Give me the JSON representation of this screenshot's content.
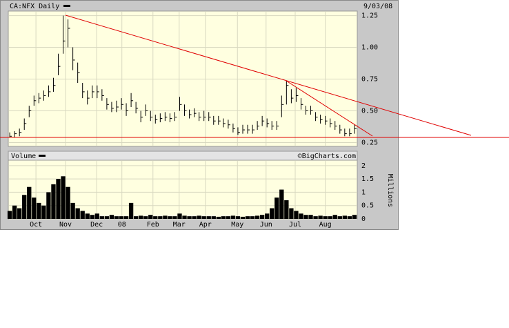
{
  "chart_data": [
    {
      "type": "ohlc",
      "title": "CA:NFX Daily",
      "date": "9/03/08",
      "watermark": "©BigCharts.com",
      "color": "#000000",
      "high": [
        0.33,
        0.34,
        0.36,
        0.44,
        0.54,
        0.62,
        0.64,
        0.66,
        0.7,
        0.76,
        0.95,
        1.25,
        1.22,
        1.0,
        0.88,
        0.72,
        0.66,
        0.7,
        0.7,
        0.67,
        0.6,
        0.57,
        0.58,
        0.6,
        0.56,
        0.64,
        0.57,
        0.5,
        0.55,
        0.5,
        0.47,
        0.48,
        0.49,
        0.48,
        0.49,
        0.61,
        0.55,
        0.51,
        0.52,
        0.49,
        0.5,
        0.49,
        0.46,
        0.46,
        0.44,
        0.43,
        0.4,
        0.37,
        0.39,
        0.39,
        0.39,
        0.42,
        0.46,
        0.44,
        0.42,
        0.42,
        0.62,
        0.74,
        0.67,
        0.68,
        0.6,
        0.54,
        0.54,
        0.49,
        0.47,
        0.46,
        0.44,
        0.42,
        0.39,
        0.36,
        0.36,
        0.39
      ],
      "low": [
        0.29,
        0.29,
        0.3,
        0.35,
        0.45,
        0.54,
        0.56,
        0.58,
        0.61,
        0.65,
        0.78,
        0.95,
        1.0,
        0.82,
        0.72,
        0.6,
        0.55,
        0.6,
        0.6,
        0.58,
        0.51,
        0.49,
        0.49,
        0.51,
        0.46,
        0.53,
        0.48,
        0.41,
        0.46,
        0.42,
        0.4,
        0.41,
        0.42,
        0.41,
        0.42,
        0.5,
        0.46,
        0.44,
        0.45,
        0.42,
        0.42,
        0.42,
        0.39,
        0.39,
        0.37,
        0.36,
        0.33,
        0.31,
        0.32,
        0.32,
        0.32,
        0.35,
        0.38,
        0.37,
        0.35,
        0.35,
        0.45,
        0.55,
        0.56,
        0.57,
        0.51,
        0.47,
        0.47,
        0.42,
        0.4,
        0.39,
        0.37,
        0.35,
        0.32,
        0.3,
        0.3,
        0.32
      ],
      "close": [
        0.3,
        0.32,
        0.33,
        0.4,
        0.5,
        0.58,
        0.6,
        0.62,
        0.65,
        0.7,
        0.85,
        1.05,
        1.15,
        0.9,
        0.8,
        0.65,
        0.6,
        0.65,
        0.65,
        0.62,
        0.55,
        0.52,
        0.53,
        0.55,
        0.5,
        0.58,
        0.52,
        0.45,
        0.5,
        0.45,
        0.43,
        0.44,
        0.45,
        0.44,
        0.45,
        0.55,
        0.5,
        0.47,
        0.48,
        0.45,
        0.45,
        0.45,
        0.42,
        0.42,
        0.4,
        0.39,
        0.36,
        0.33,
        0.35,
        0.35,
        0.35,
        0.38,
        0.42,
        0.4,
        0.38,
        0.38,
        0.55,
        0.7,
        0.6,
        0.62,
        0.55,
        0.5,
        0.5,
        0.45,
        0.43,
        0.42,
        0.4,
        0.38,
        0.35,
        0.32,
        0.32,
        0.36
      ],
      "xlim": [
        -0.3,
        71.3
      ],
      "xticks": [
        {
          "value": 5.4,
          "label": "Oct"
        },
        {
          "value": 11.5,
          "label": "Nov"
        },
        {
          "value": 17.9,
          "label": "Dec"
        },
        {
          "value": 23.1,
          "label": "08"
        },
        {
          "value": 29.5,
          "label": "Feb"
        },
        {
          "value": 34.9,
          "label": "Mar"
        },
        {
          "value": 40.3,
          "label": "Apr"
        },
        {
          "value": 46.9,
          "label": "May"
        },
        {
          "value": 52.8,
          "label": "Jun"
        },
        {
          "value": 58.8,
          "label": "Jul"
        },
        {
          "value": 65.0,
          "label": "Aug"
        }
      ],
      "ylim": [
        0.22,
        1.264
      ],
      "yticks": [
        0.25,
        {
          "value": 0.5,
          "label": "0.50"
        },
        0.75,
        {
          "value": 1,
          "label": "1.00"
        },
        1.25
      ],
      "grid": true
    },
    {
      "type": "bar",
      "title": "Volume",
      "ylabel": "Millions",
      "color": "#000000",
      "values": [
        0.3,
        0.5,
        0.4,
        0.9,
        1.2,
        0.8,
        0.6,
        0.5,
        1.0,
        1.3,
        1.5,
        1.6,
        1.2,
        0.6,
        0.4,
        0.3,
        0.2,
        0.15,
        0.2,
        0.1,
        0.1,
        0.15,
        0.1,
        0.1,
        0.1,
        0.6,
        0.1,
        0.12,
        0.1,
        0.15,
        0.1,
        0.1,
        0.12,
        0.1,
        0.1,
        0.2,
        0.12,
        0.1,
        0.1,
        0.12,
        0.1,
        0.1,
        0.1,
        0.08,
        0.1,
        0.1,
        0.12,
        0.1,
        0.08,
        0.1,
        0.1,
        0.12,
        0.15,
        0.2,
        0.4,
        0.8,
        1.1,
        0.7,
        0.4,
        0.3,
        0.2,
        0.15,
        0.15,
        0.1,
        0.12,
        0.1,
        0.1,
        0.15,
        0.1,
        0.12,
        0.1,
        0.15
      ],
      "xlim": [
        -0.3,
        71.3
      ],
      "ylim": [
        0,
        2.1
      ],
      "yticks": [
        0,
        0.5,
        1,
        1.5,
        2
      ],
      "grid": true
    }
  ]
}
